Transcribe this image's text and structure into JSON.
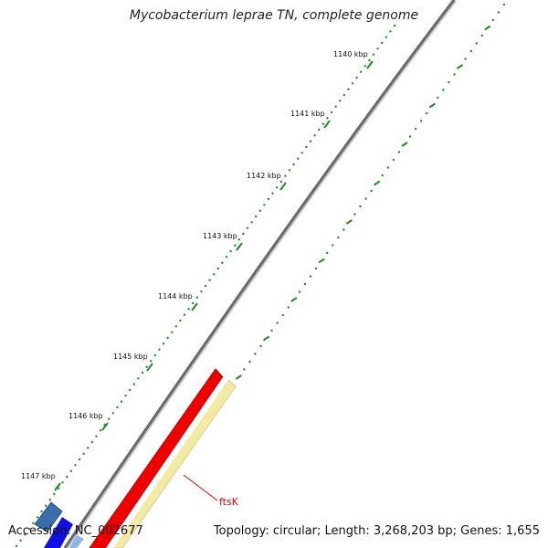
{
  "title": "Mycobacterium leprae TN, complete genome",
  "accession": "Accession: NC_002677",
  "summary": "Topology: circular; Length: 3,268,203 bp; Genes: 1,655",
  "colors": {
    "backbone": "#6a6a6a",
    "tick": "#1e8c1e",
    "gene_forward": "#ee0000",
    "gene_reverse": "#f3eaa3",
    "label": "#e00000"
  },
  "scale_labels": [
    {
      "text": "1140 kbp",
      "kbp": 1140
    },
    {
      "text": "1141 kbp",
      "kbp": 1141
    },
    {
      "text": "1142 kbp",
      "kbp": 1142
    },
    {
      "text": "1143 kbp",
      "kbp": 1143
    },
    {
      "text": "1144 kbp",
      "kbp": 1144
    },
    {
      "text": "1145 kbp",
      "kbp": 1145
    },
    {
      "text": "1146 kbp",
      "kbp": 1146
    },
    {
      "text": "1147 kbp",
      "kbp": 1147
    }
  ],
  "genes": [
    {
      "name": "ftsK",
      "strand": "forward"
    }
  ]
}
